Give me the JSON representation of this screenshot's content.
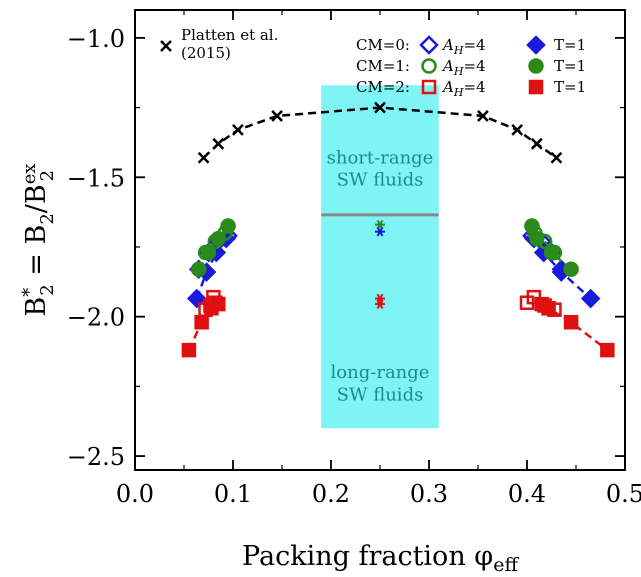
{
  "chart_data": {
    "type": "scatter",
    "xlabel": "Packing fraction φ",
    "xlabel_sub": "eff",
    "ylabel_parts": [
      "B",
      "*",
      "2",
      " = B",
      "2",
      "/B",
      "ex",
      "2"
    ],
    "xlim": [
      0.0,
      0.5
    ],
    "ylim": [
      -2.55,
      -0.9
    ],
    "xticks": [
      0.0,
      0.1,
      0.2,
      0.3,
      0.4,
      0.5
    ],
    "xtick_labels": [
      "0.0",
      "0.1",
      "0.2",
      "0.3",
      "0.4",
      "0.5"
    ],
    "yticks": [
      -1.0,
      -1.5,
      -2.0,
      -2.5
    ],
    "ytick_labels": [
      "−1.0",
      "−1.5",
      "−2.0",
      "−2.5"
    ],
    "grid": false,
    "shaded_region": {
      "x": [
        0.19,
        0.31
      ],
      "y": [
        -2.4,
        -1.17
      ],
      "color": "#7ff4f4"
    },
    "horizontal_line": {
      "x": [
        0.19,
        0.31
      ],
      "y": -1.635,
      "color": "#888888"
    },
    "annotations": [
      {
        "text_lines": [
          "short-range",
          "SW fluids"
        ],
        "x": 0.25,
        "y": [
          -1.45,
          -1.53
        ],
        "color": "#1f8a8a"
      },
      {
        "text_lines": [
          "long-range",
          "SW fluids"
        ],
        "x": 0.25,
        "y": [
          -2.22,
          -2.3
        ],
        "color": "#1f8a8a"
      }
    ],
    "legend": {
      "placement": "top",
      "platten_label_lines": [
        "Platten et al.",
        "(2015)"
      ],
      "cm_labels": [
        "CM=0:",
        "CM=1:",
        "CM=2:"
      ],
      "ah_labels": [
        "A",
        "A",
        "A"
      ],
      "ah_subscript": "H",
      "ah_value": "=4",
      "t_labels": [
        "T=1",
        "T=1",
        "T=1"
      ]
    },
    "series": [
      {
        "name": "Platten et al. (2015)",
        "marker": "x",
        "color": "#000000",
        "line": "dashed",
        "x": [
          0.07,
          0.085,
          0.105,
          0.145,
          0.25,
          0.355,
          0.39,
          0.41,
          0.43
        ],
        "y": [
          -1.43,
          -1.38,
          -1.33,
          -1.28,
          -1.25,
          -1.28,
          -1.33,
          -1.38,
          -1.43
        ]
      },
      {
        "name": "CM=0: A_H=4",
        "marker": "diamond-open",
        "color": "#1a1adc",
        "line": "dashed",
        "segments": [
          {
            "x": [
              0.065,
              0.075,
              0.085,
              0.095
            ],
            "y": [
              -1.83,
              -1.77,
              -1.73,
              -1.71
            ]
          },
          {
            "x": [
              0.405,
              0.415,
              0.425,
              0.435
            ],
            "y": [
              -1.71,
              -1.73,
              -1.77,
              -1.83
            ]
          }
        ]
      },
      {
        "name": "CM=0: T=1",
        "marker": "diamond-filled",
        "color": "#1a1adc",
        "line": "dashed",
        "segments": [
          {
            "x": [
              0.063,
              0.073,
              0.083,
              0.093
            ],
            "y": [
              -1.935,
              -1.84,
              -1.77,
              -1.72
            ]
          },
          {
            "x": [
              0.407,
              0.417,
              0.435,
              0.465
            ],
            "y": [
              -1.72,
              -1.77,
              -1.84,
              -1.935
            ]
          }
        ]
      },
      {
        "name": "CM=1: A_H=4",
        "marker": "circle-open",
        "color": "#2a8a1a",
        "line": "dashed",
        "segments": [
          {
            "x": [
              0.072,
              0.082,
              0.092
            ],
            "y": [
              -1.77,
              -1.73,
              -1.7
            ]
          },
          {
            "x": [
              0.408,
              0.418,
              0.428
            ],
            "y": [
              -1.7,
              -1.73,
              -1.77
            ]
          }
        ]
      },
      {
        "name": "CM=1: T=1",
        "marker": "circle-filled",
        "color": "#2a8a1a",
        "line": "dashed",
        "segments": [
          {
            "x": [
              0.065,
              0.075,
              0.085,
              0.095
            ],
            "y": [
              -1.83,
              -1.77,
              -1.72,
              -1.675
            ]
          },
          {
            "x": [
              0.405,
              0.41,
              0.425,
              0.445
            ],
            "y": [
              -1.675,
              -1.72,
              -1.77,
              -1.83
            ]
          }
        ]
      },
      {
        "name": "CM=2: A_H=4",
        "marker": "square-open",
        "color": "#e01010",
        "line": "none",
        "segments": [
          {
            "x": [
              0.072,
              0.077,
              0.082,
              0.08
            ],
            "y": [
              -1.975,
              -1.96,
              -1.95,
              -1.93
            ]
          },
          {
            "x": [
              0.4,
              0.407,
              0.418,
              0.428
            ],
            "y": [
              -1.95,
              -1.93,
              -1.96,
              -1.975
            ]
          }
        ]
      },
      {
        "name": "CM=2: T=1",
        "marker": "square-filled",
        "color": "#e01010",
        "line": "dashed",
        "segments": [
          {
            "x": [
              0.055,
              0.068,
              0.078,
              0.085
            ],
            "y": [
              -2.12,
              -2.02,
              -1.97,
              -1.955
            ]
          },
          {
            "x": [
              0.415,
              0.422,
              0.445,
              0.482
            ],
            "y": [
              -1.955,
              -1.97,
              -2.02,
              -2.12
            ]
          }
        ]
      },
      {
        "name": "center markers",
        "marker": "asterisk",
        "points": [
          {
            "x": 0.25,
            "y": -1.67,
            "color": "#2a8a1a"
          },
          {
            "x": 0.25,
            "y": -1.695,
            "color": "#1a1adc"
          },
          {
            "x": 0.25,
            "y": -1.935,
            "color": "#e01010"
          },
          {
            "x": 0.25,
            "y": -1.955,
            "color": "#e01010"
          }
        ]
      }
    ]
  }
}
